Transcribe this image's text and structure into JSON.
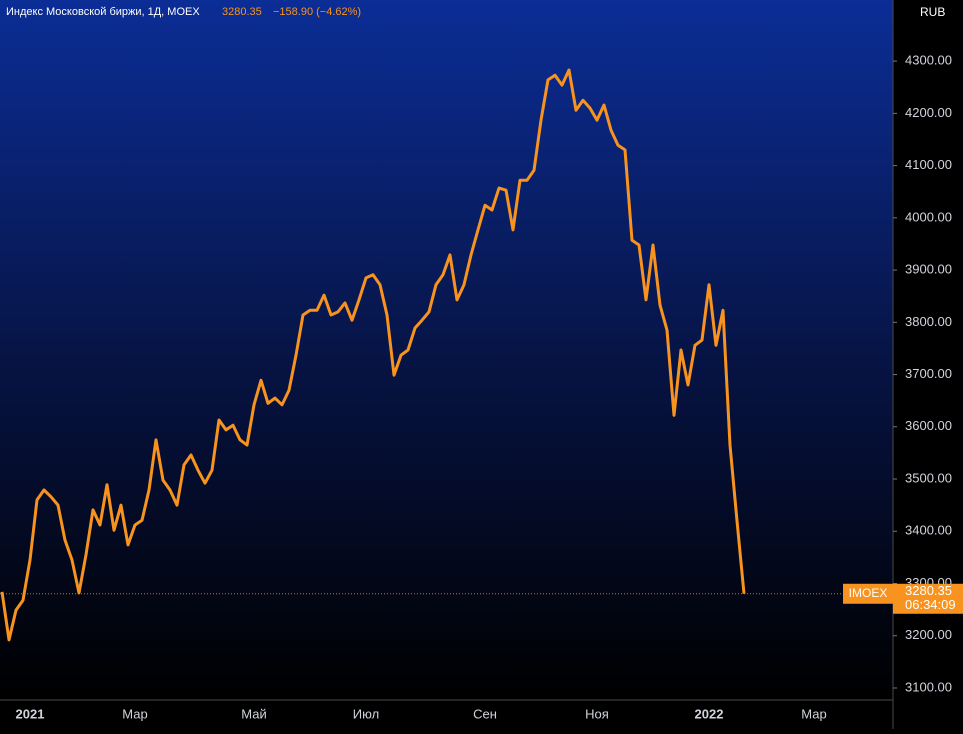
{
  "chart_data": {
    "type": "line",
    "title": "Индекс Московской биржи, 1Д, MOEX",
    "change": "−158.90 (−4.62%)",
    "currency": "RUB",
    "countdown": "06:34:09",
    "categories": [
      null,
      null,
      null,
      null,
      "2021",
      null,
      null,
      null,
      null,
      null,
      null,
      null,
      null,
      null,
      null,
      null,
      null,
      null,
      null,
      "Мар",
      null,
      null,
      null,
      null,
      null,
      null,
      null,
      null,
      null,
      null,
      null,
      null,
      null,
      null,
      null,
      null,
      "Май",
      null,
      null,
      null,
      null,
      null,
      null,
      null,
      null,
      null,
      null,
      null,
      null,
      null,
      null,
      null,
      "Июл",
      null,
      null,
      null,
      null,
      null,
      null,
      null,
      null,
      null,
      null,
      null,
      null,
      null,
      null,
      null,
      null,
      "Сен",
      null,
      null,
      null,
      null,
      null,
      null,
      null,
      null,
      null,
      null,
      null,
      null,
      null,
      null,
      null,
      "Ноя",
      null,
      null,
      null,
      null,
      null,
      null,
      null,
      null,
      null,
      null,
      null,
      null,
      null,
      null,
      null,
      "2022",
      null,
      null,
      null,
      null,
      null,
      null,
      null,
      null,
      null,
      null,
      null,
      null,
      null,
      null,
      "Мар",
      null,
      null,
      null
    ],
    "series": [
      {
        "name": "IMOEX",
        "color": "#f7931e",
        "values": [
          3284,
          3192,
          3249,
          3268,
          3345,
          3460,
          3479,
          3466,
          3450,
          3383,
          3345,
          3282,
          3355,
          3441,
          3412,
          3489,
          3402,
          3450,
          3374,
          3412,
          3421,
          3479,
          3575,
          3498,
          3479,
          3450,
          3527,
          3546,
          3517,
          3492,
          3517,
          3613,
          3594,
          3603,
          3575,
          3565,
          3642,
          3689,
          3645,
          3655,
          3642,
          3670,
          3737,
          3814,
          3823,
          3823,
          3852,
          3814,
          3820,
          3837,
          3804,
          3843,
          3885,
          3891,
          3872,
          3814,
          3699,
          3737,
          3747,
          3789,
          3804,
          3820,
          3872,
          3891,
          3929,
          3843,
          3872,
          3929,
          3977,
          4024,
          4015,
          4057,
          4053,
          3977,
          4072,
          4072,
          4091,
          4187,
          4264,
          4273,
          4254,
          4283,
          4206,
          4225,
          4210,
          4187,
          4216,
          4168,
          4139,
          4130,
          3957,
          3948,
          3843,
          3948,
          3833,
          3785,
          3622,
          3747,
          3680,
          3756,
          3766,
          3872,
          3756,
          3823,
          3565,
          3420,
          3280.35,
          null,
          null,
          null,
          null,
          null,
          null,
          null,
          null,
          null,
          null,
          null,
          null,
          null
        ]
      }
    ],
    "ylim": [
      3077,
      4417
    ],
    "yticks": [
      {
        "value": 3100,
        "label": "3100.00"
      },
      {
        "value": 3200,
        "label": "3200.00"
      },
      {
        "value": 3300,
        "label": "3300.00"
      },
      {
        "value": 3400,
        "label": "3400.00"
      },
      {
        "value": 3500,
        "label": "3500.00"
      },
      {
        "value": 3600,
        "label": "3600.00"
      },
      {
        "value": 3700,
        "label": "3700.00"
      },
      {
        "value": 3800,
        "label": "3800.00"
      },
      {
        "value": 3900,
        "label": "3900.00"
      },
      {
        "value": 4000,
        "label": "4000.00"
      },
      {
        "value": 4100,
        "label": "4100.00"
      },
      {
        "value": 4200,
        "label": "4200.00"
      },
      {
        "value": 4300,
        "label": "4300.00"
      }
    ]
  }
}
